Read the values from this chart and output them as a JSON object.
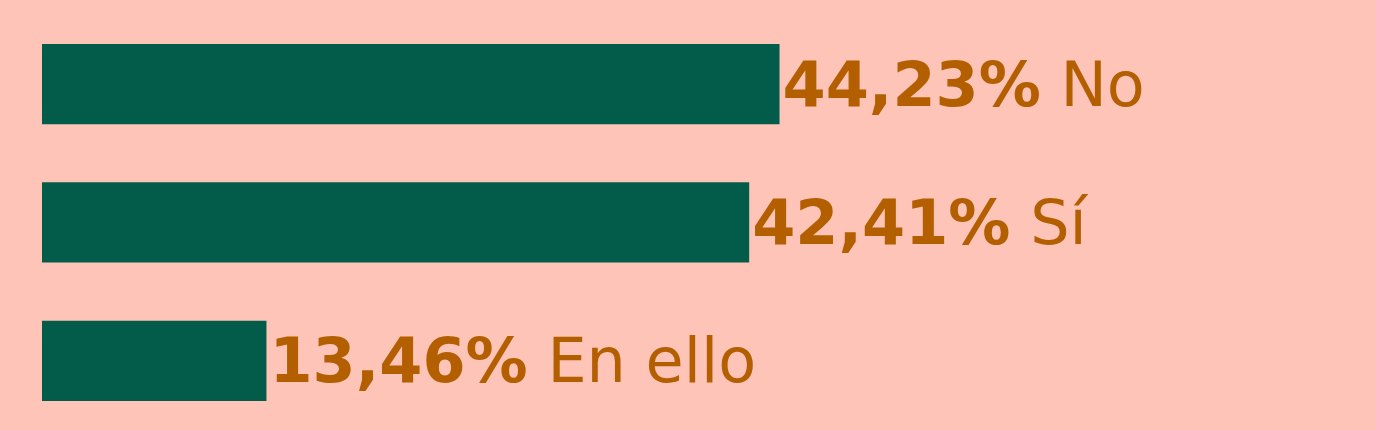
{
  "chart_data": {
    "type": "bar",
    "orientation": "horizontal",
    "categories": [
      "No",
      "Sí",
      "En ello"
    ],
    "values": [
      44.23,
      42.41,
      13.46
    ],
    "value_labels": [
      "44,23%",
      "42,41%",
      "13,46%"
    ],
    "color": "#035c4a",
    "xlim": [
      0,
      80
    ],
    "tick_labels": false,
    "grid": false,
    "legend": false
  }
}
